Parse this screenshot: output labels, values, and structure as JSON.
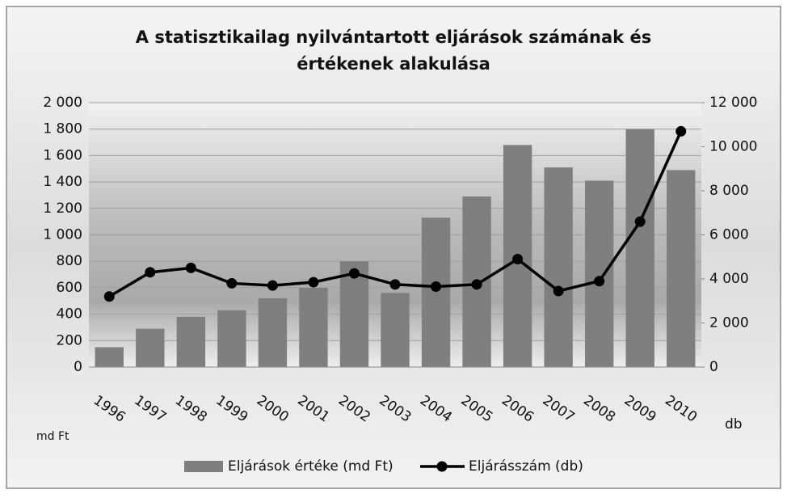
{
  "chart_data": {
    "type": "bar-line",
    "title": "A statisztikailag nyilvántartott eljárások számának és",
    "subtitle": "értékenek alakulása",
    "y_label": "md Ft",
    "y2_label": "db",
    "categories": [
      "1996",
      "1997",
      "1998",
      "1999",
      "2000",
      "2001",
      "2002",
      "2003",
      "2004",
      "2005",
      "2006",
      "2007",
      "2008",
      "2009",
      "2010"
    ],
    "series": [
      {
        "name": "Eljárások értéke (md Ft)",
        "type": "bar",
        "color": "#7f7f7f",
        "values": [
          150,
          290,
          380,
          430,
          520,
          600,
          800,
          560,
          1130,
          1290,
          1680,
          1510,
          1410,
          1800,
          1490
        ]
      },
      {
        "name": "Eljárásszám (db)",
        "type": "line",
        "axis": "y2",
        "color": "#000000",
        "values": [
          3200,
          4300,
          4500,
          3800,
          3700,
          3850,
          4250,
          3750,
          3650,
          3750,
          4900,
          3450,
          3900,
          6600,
          10700
        ]
      }
    ],
    "ylim": [
      0,
      2000
    ],
    "yticks": [
      0,
      200,
      400,
      600,
      800,
      {
        "value": 1000,
        "label": "1 000"
      },
      {
        "value": 1200,
        "label": "1 200"
      },
      {
        "value": 1400,
        "label": "1 400"
      },
      {
        "value": 1600,
        "label": "1 600"
      },
      {
        "value": 1800,
        "label": "1 800"
      },
      {
        "value": 2000,
        "label": "2 000"
      }
    ],
    "y2lim": [
      0,
      12000
    ],
    "y2ticks": [
      0,
      {
        "value": 2000,
        "label": "2 000"
      },
      {
        "value": 4000,
        "label": "4 000"
      },
      {
        "value": 6000,
        "label": "6 000"
      },
      {
        "value": 8000,
        "label": "8 000"
      },
      {
        "value": 10000,
        "label": "10 000"
      },
      {
        "value": 12000,
        "label": "12 000"
      }
    ],
    "grid": true,
    "legend": "bottom"
  }
}
